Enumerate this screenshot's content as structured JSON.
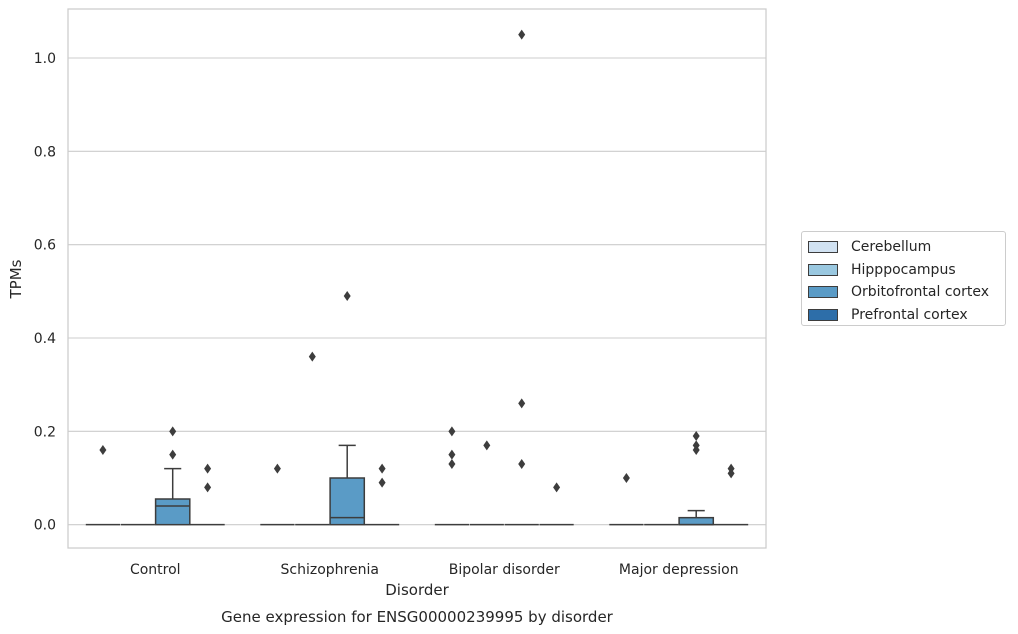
{
  "chart_data": {
    "type": "box",
    "title": "",
    "caption": "Gene expression for ENSG00000239995 by disorder",
    "xlabel": "Disorder",
    "ylabel": "TPMs",
    "ylim": [
      -0.05,
      1.105
    ],
    "yticks": [
      0.0,
      0.2,
      0.4,
      0.6,
      0.8,
      1.0
    ],
    "ytick_labels": [
      "0.0",
      "0.2",
      "0.4",
      "0.6",
      "0.8",
      "1.0"
    ],
    "grid": "horizontal",
    "legend_position": "right",
    "categories": [
      "Control",
      "Schizophrenia",
      "Bipolar disorder",
      "Major depression"
    ],
    "series": [
      {
        "name": "Cerebellum",
        "color": "#d1e2f2",
        "boxes": [
          {
            "q1": 0,
            "median": 0,
            "q3": 0,
            "whisker_low": 0,
            "whisker_high": 0,
            "outliers": [
              0.16
            ]
          },
          {
            "q1": 0,
            "median": 0,
            "q3": 0,
            "whisker_low": 0,
            "whisker_high": 0,
            "outliers": [
              0.12
            ]
          },
          {
            "q1": 0,
            "median": 0,
            "q3": 0,
            "whisker_low": 0,
            "whisker_high": 0,
            "outliers": [
              0.2,
              0.15,
              0.13
            ]
          },
          {
            "q1": 0,
            "median": 0,
            "q3": 0,
            "whisker_low": 0,
            "whisker_high": 0,
            "outliers": [
              0.1
            ]
          }
        ]
      },
      {
        "name": "Hipppocampus",
        "color": "#9ac8e0",
        "boxes": [
          {
            "q1": 0,
            "median": 0,
            "q3": 0,
            "whisker_low": 0,
            "whisker_high": 0,
            "outliers": []
          },
          {
            "q1": 0,
            "median": 0,
            "q3": 0,
            "whisker_low": 0,
            "whisker_high": 0,
            "outliers": [
              0.36
            ]
          },
          {
            "q1": 0,
            "median": 0,
            "q3": 0,
            "whisker_low": 0,
            "whisker_high": 0,
            "outliers": [
              0.17
            ]
          },
          {
            "q1": 0,
            "median": 0,
            "q3": 0,
            "whisker_low": 0,
            "whisker_high": 0,
            "outliers": []
          }
        ]
      },
      {
        "name": "Orbitofrontal cortex",
        "color": "#5a9bc6",
        "boxes": [
          {
            "q1": 0,
            "median": 0.04,
            "q3": 0.055,
            "whisker_low": 0,
            "whisker_high": 0.12,
            "outliers": [
              0.2,
              0.15
            ]
          },
          {
            "q1": 0,
            "median": 0.015,
            "q3": 0.1,
            "whisker_low": 0,
            "whisker_high": 0.17,
            "outliers": [
              0.49
            ]
          },
          {
            "q1": 0,
            "median": 0,
            "q3": 0,
            "whisker_low": 0,
            "whisker_high": 0,
            "outliers": [
              1.05,
              0.26,
              0.13
            ]
          },
          {
            "q1": 0,
            "median": 0,
            "q3": 0.015,
            "whisker_low": 0,
            "whisker_high": 0.03,
            "outliers": [
              0.19,
              0.17,
              0.16
            ]
          }
        ]
      },
      {
        "name": "Prefrontal cortex",
        "color": "#2d6ea9",
        "boxes": [
          {
            "q1": 0,
            "median": 0,
            "q3": 0,
            "whisker_low": 0,
            "whisker_high": 0,
            "outliers": [
              0.12,
              0.08
            ]
          },
          {
            "q1": 0,
            "median": 0,
            "q3": 0,
            "whisker_low": 0,
            "whisker_high": 0,
            "outliers": [
              0.12,
              0.09
            ]
          },
          {
            "q1": 0,
            "median": 0,
            "q3": 0,
            "whisker_low": 0,
            "whisker_high": 0,
            "outliers": [
              0.08
            ]
          },
          {
            "q1": 0,
            "median": 0,
            "q3": 0,
            "whisker_low": 0,
            "whisker_high": 0,
            "outliers": [
              0.12,
              0.11
            ]
          }
        ]
      }
    ]
  }
}
